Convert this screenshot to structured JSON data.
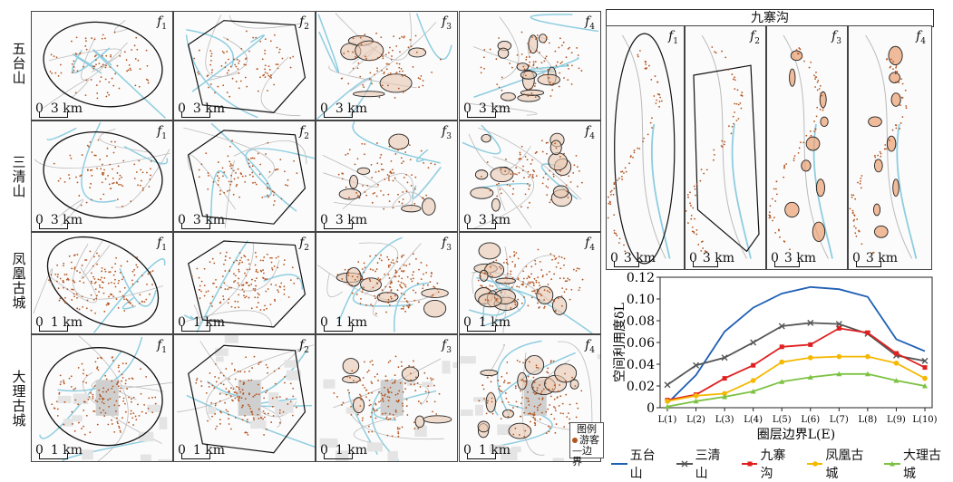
{
  "rows": [
    {
      "label": "五台山",
      "scale": "3 km"
    },
    {
      "label": "三清山",
      "scale": "3 km"
    },
    {
      "label": "凤凰古城",
      "scale": "1 km"
    },
    {
      "label": "大理古城",
      "scale": "1 km"
    }
  ],
  "jiuzhaigou": {
    "title": "九寨沟",
    "scale": "3 km"
  },
  "panel_labels": {
    "f1": "f",
    "s1": "1",
    "s2": "2",
    "s3": "3",
    "s4": "4"
  },
  "scale_zero": "0",
  "map_legend": {
    "line1": "图例",
    "tourist": "游客",
    "boundary": "边界"
  },
  "colors": {
    "wutaishan": "#1f5fb4",
    "sanqingshan": "#555555",
    "jiuzhaigou": "#e02020",
    "fenghuang": "#f5b800",
    "dali": "#7cc242",
    "tourist_dot": "#b4541e",
    "river": "#8ecde0",
    "road": "#bbbbbb"
  },
  "chart_data": {
    "type": "line",
    "xlabel": "圈层边界L(E)",
    "ylabel": "空间利用度δ_L",
    "categories": [
      "L(1)",
      "L(2)",
      "L(3)",
      "L(4)",
      "L(5)",
      "L(6)",
      "L(7)",
      "L(8)",
      "L(9)",
      "L(10)"
    ],
    "ylim": [
      0,
      0.12
    ],
    "yticks": [
      "0",
      "0.02",
      "0.04",
      "0.06",
      "0.08",
      "0.10",
      "0.12"
    ],
    "ytick_values": [
      0,
      0.02,
      0.04,
      0.06,
      0.08,
      0.1,
      0.12
    ],
    "legend_position": "bottom",
    "series": [
      {
        "name": "五台山",
        "marker": "none",
        "color": "#1f5fb4",
        "values": [
          0.004,
          0.03,
          0.07,
          0.092,
          0.105,
          0.111,
          0.109,
          0.102,
          0.063,
          0.052
        ]
      },
      {
        "name": "三清山",
        "marker": "x",
        "color": "#555555",
        "values": [
          0.021,
          0.039,
          0.046,
          0.06,
          0.075,
          0.078,
          0.077,
          0.068,
          0.048,
          0.043
        ]
      },
      {
        "name": "九寨沟",
        "marker": "square",
        "color": "#e02020",
        "values": [
          0.007,
          0.012,
          0.027,
          0.039,
          0.056,
          0.058,
          0.073,
          0.069,
          0.05,
          0.037
        ]
      },
      {
        "name": "凤凰古城",
        "marker": "circle",
        "color": "#f5b800",
        "values": [
          0.006,
          0.011,
          0.013,
          0.025,
          0.042,
          0.046,
          0.047,
          0.047,
          0.041,
          0.027
        ]
      },
      {
        "name": "大理古城",
        "marker": "triangle",
        "color": "#7cc242",
        "values": [
          0.001,
          0.006,
          0.01,
          0.015,
          0.024,
          0.028,
          0.031,
          0.031,
          0.025,
          0.02
        ]
      }
    ]
  }
}
